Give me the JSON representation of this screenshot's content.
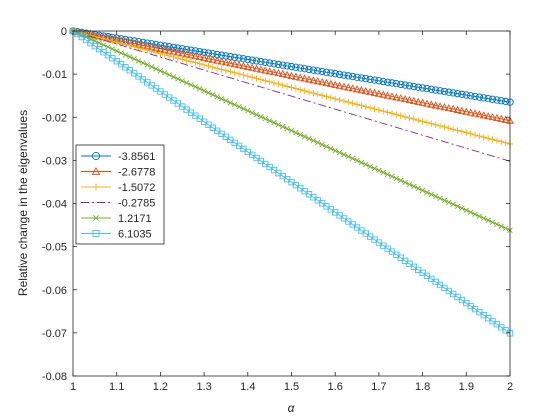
{
  "chart_data": {
    "type": "line",
    "xlabel": "α",
    "ylabel": "Relative change in the eigenvalues",
    "xlim": [
      1,
      2
    ],
    "ylim": [
      -0.08,
      0
    ],
    "x_ticks": [
      "1",
      "1.1",
      "1.2",
      "1.3",
      "1.4",
      "1.5",
      "1.6",
      "1.7",
      "1.8",
      "1.9",
      "2"
    ],
    "y_ticks": [
      "0",
      "-0.01",
      "-0.02",
      "-0.03",
      "-0.04",
      "-0.05",
      "-0.06",
      "-0.07",
      "-0.08"
    ],
    "grid": false,
    "legend_position": "left-middle",
    "series": [
      {
        "name": "-3.8561",
        "color": "#0072BD",
        "marker": "circle",
        "line_style": "solid",
        "x": [
          1,
          2
        ],
        "values": [
          0,
          -0.0165
        ]
      },
      {
        "name": "-2.6778",
        "color": "#D95319",
        "marker": "triangle",
        "line_style": "solid",
        "x": [
          1,
          2
        ],
        "values": [
          0,
          -0.0208
        ]
      },
      {
        "name": "-1.5072",
        "color": "#EDB120",
        "marker": "plus",
        "line_style": "solid",
        "x": [
          1,
          2
        ],
        "values": [
          0,
          -0.0262
        ]
      },
      {
        "name": "-0.2785",
        "color": "#7E2F8E",
        "marker": "none",
        "line_style": "dashdot",
        "x": [
          1,
          2
        ],
        "values": [
          0,
          -0.0302
        ]
      },
      {
        "name": "1.2171",
        "color": "#77AC30",
        "marker": "x",
        "line_style": "solid",
        "x": [
          1,
          2
        ],
        "values": [
          0,
          -0.0462
        ]
      },
      {
        "name": "6.1035",
        "color": "#4DBEEE",
        "marker": "square",
        "line_style": "solid",
        "x": [
          1,
          2
        ],
        "values": [
          0,
          -0.0701
        ]
      }
    ]
  }
}
